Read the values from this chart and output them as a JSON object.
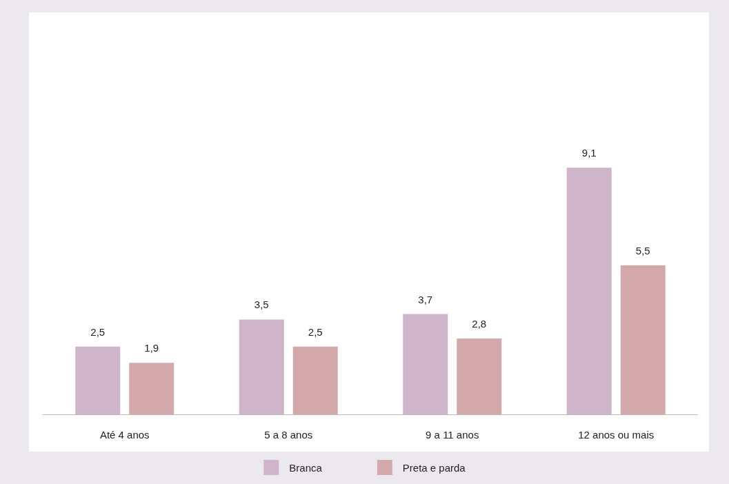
{
  "chart_data": {
    "type": "bar",
    "categories": [
      "Até 4 anos",
      "5 a 8 anos",
      "9 a 11 anos",
      "12 anos ou mais"
    ],
    "series": [
      {
        "name": "Branca",
        "color": "#cfb5c9",
        "values": [
          2.5,
          3.5,
          3.7,
          9.1
        ],
        "value_labels": [
          "2,5",
          "3,5",
          "3,7",
          "9,1"
        ]
      },
      {
        "name": "Preta e parda",
        "color": "#d4a9ac",
        "values": [
          1.9,
          2.5,
          2.8,
          5.5
        ],
        "value_labels": [
          "1,9",
          "2,5",
          "2,8",
          "5,5"
        ]
      }
    ],
    "legend": "bottom",
    "grid": false
  }
}
